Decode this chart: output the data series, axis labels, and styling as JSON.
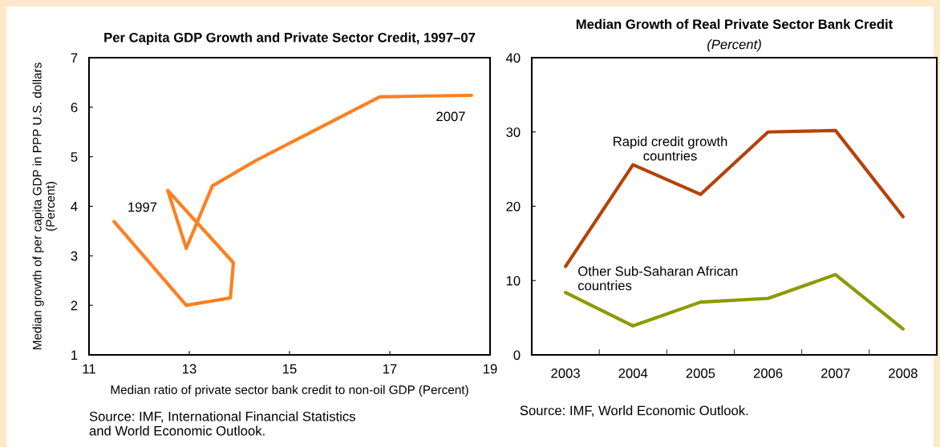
{
  "chart_data": [
    {
      "type": "line",
      "title": "Per Capita GDP Growth and Private Sector Credit, 1997–07",
      "xlabel": "Median ratio of private sector bank credit to non-oil GDP (Percent)",
      "ylabel": "Median growth of per capita GDP in PPP U.S. dollars\n(Percent)",
      "x": [
        11.5,
        12.94,
        13.82,
        13.88,
        12.57,
        12.94,
        13.46,
        14.34,
        15.38,
        16.8,
        18.63
      ],
      "series": [
        {
          "color": "#ff7f1f",
          "values": [
            3.69,
            2.0,
            2.15,
            2.86,
            4.32,
            3.15,
            4.41,
            4.93,
            5.47,
            6.21,
            6.24
          ]
        }
      ],
      "xlim": [
        11,
        19
      ],
      "xticks": [
        11,
        13,
        15,
        17,
        19
      ],
      "ylim": [
        1,
        7
      ],
      "yticks": [
        1,
        2,
        3,
        4,
        5,
        6,
        7
      ],
      "grid": false,
      "legend": false,
      "annotations": [
        {
          "text": "1997",
          "x": 11.5,
          "y": 3.69
        },
        {
          "text": "2007",
          "x": 18.63,
          "y": 6.24
        },
        "Source: IMF, International Financial Statistics\nand World Economic Outlook."
      ]
    },
    {
      "type": "line",
      "title": "Median Growth of Real Private Sector Bank Credit",
      "subtitle": "(Percent)",
      "categories": [
        "2003",
        "2004",
        "2005",
        "2006",
        "2007",
        "2008"
      ],
      "series": [
        {
          "name": "Rapid credit growth\ncountries",
          "color": "#b5420a",
          "values": [
            11.9,
            25.6,
            21.6,
            30.0,
            30.2,
            18.6
          ]
        },
        {
          "name": "Other Sub-Saharan African\ncountries",
          "color": "#8c9a00",
          "values": [
            8.4,
            3.9,
            7.1,
            7.6,
            10.8,
            3.5
          ]
        }
      ],
      "ylim": [
        0,
        40
      ],
      "yticks": [
        0,
        10,
        20,
        30,
        40
      ],
      "grid": false,
      "legend": false,
      "annotations": [
        "Source: IMF, World Economic Outlook."
      ]
    }
  ]
}
